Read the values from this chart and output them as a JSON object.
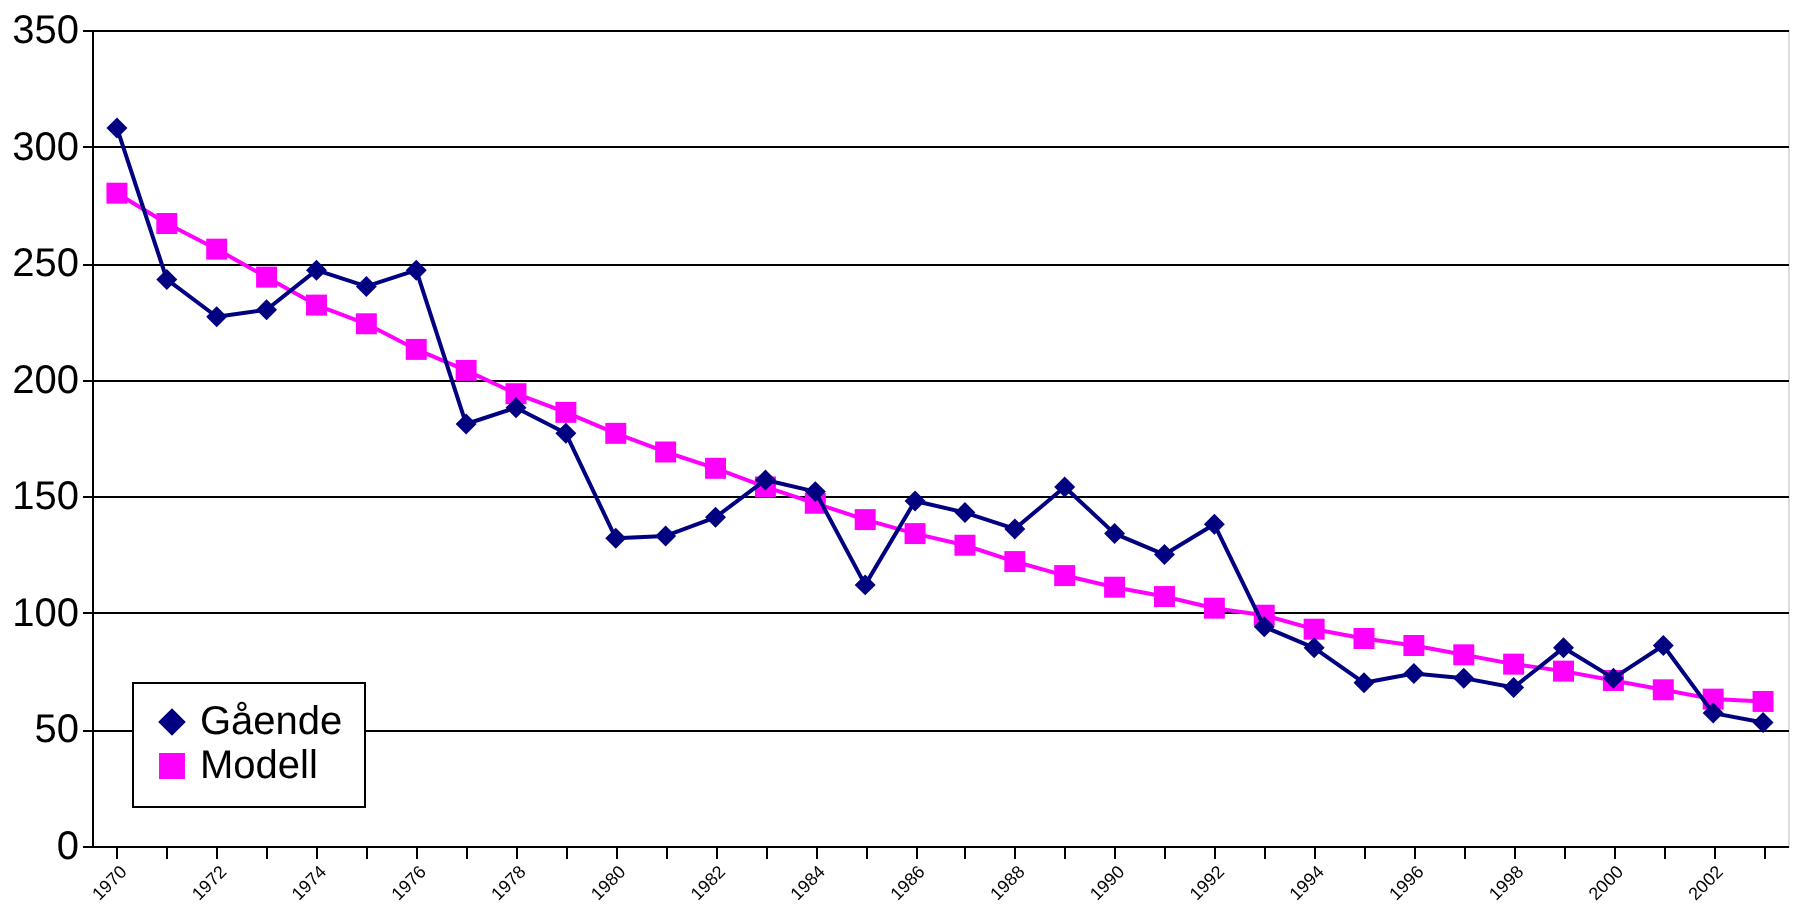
{
  "chart_data": {
    "type": "line",
    "x": [
      1970,
      1971,
      1972,
      1973,
      1974,
      1975,
      1976,
      1977,
      1978,
      1979,
      1980,
      1981,
      1982,
      1983,
      1984,
      1985,
      1986,
      1987,
      1988,
      1989,
      1990,
      1991,
      1992,
      1993,
      1994,
      1995,
      1996,
      1997,
      1998,
      1999,
      2000,
      2001,
      2002,
      2003
    ],
    "series": [
      {
        "name": "Gående",
        "color": "#000080",
        "marker": "diamond",
        "values": [
          308,
          243,
          227,
          230,
          247,
          240,
          247,
          181,
          188,
          177,
          132,
          133,
          141,
          157,
          152,
          112,
          148,
          143,
          136,
          154,
          134,
          125,
          138,
          94,
          85,
          70,
          74,
          72,
          68,
          85,
          72,
          86,
          57,
          53
        ]
      },
      {
        "name": "Modell",
        "color": "#ff00ff",
        "marker": "square",
        "values": [
          280,
          267,
          256,
          244,
          232,
          224,
          213,
          204,
          194,
          186,
          177,
          169,
          162,
          154,
          147,
          140,
          134,
          129,
          122,
          116,
          111,
          107,
          102,
          99,
          93,
          89,
          86,
          82,
          78,
          75,
          71,
          67,
          63,
          62
        ]
      }
    ],
    "xlim": [
      1969.5,
      2003.5
    ],
    "xticks": [
      1970,
      {
        "value": 1971,
        "label": null
      },
      1972,
      {
        "value": 1973,
        "label": null
      },
      1974,
      {
        "value": 1975,
        "label": null
      },
      1976,
      {
        "value": 1977,
        "label": null
      },
      1978,
      {
        "value": 1979,
        "label": null
      },
      1980,
      {
        "value": 1981,
        "label": null
      },
      1982,
      {
        "value": 1983,
        "label": null
      },
      1984,
      {
        "value": 1985,
        "label": null
      },
      1986,
      {
        "value": 1987,
        "label": null
      },
      1988,
      {
        "value": 1989,
        "label": null
      },
      1990,
      {
        "value": 1991,
        "label": null
      },
      1992,
      {
        "value": 1993,
        "label": null
      },
      1994,
      {
        "value": 1995,
        "label": null
      },
      1996,
      {
        "value": 1997,
        "label": null
      },
      1998,
      {
        "value": 1999,
        "label": null
      },
      2000,
      {
        "value": 2001,
        "label": null
      },
      2002,
      {
        "value": 2003,
        "label": null
      }
    ],
    "ylim": [
      0,
      350
    ],
    "yticks": [
      0,
      50,
      100,
      150,
      200,
      250,
      300,
      350
    ],
    "grid": "y",
    "legend": "bottom left",
    "line_style": "solid"
  }
}
